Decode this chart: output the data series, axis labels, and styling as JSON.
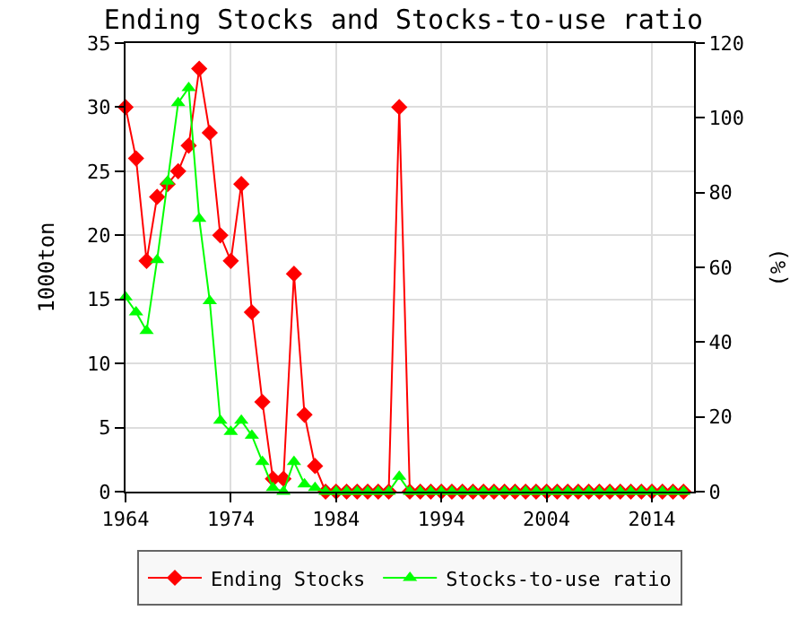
{
  "chart_data": {
    "type": "line",
    "title": "Ending Stocks and Stocks-to-use ratio",
    "ylabel": "1000ton",
    "y2label": "(%)",
    "x": [
      1964,
      1965,
      1966,
      1967,
      1968,
      1969,
      1970,
      1971,
      1972,
      1973,
      1974,
      1975,
      1976,
      1977,
      1978,
      1979,
      1980,
      1981,
      1982,
      1983,
      1984,
      1985,
      1986,
      1987,
      1988,
      1989,
      1990,
      1991,
      1992,
      1993,
      1994,
      1995,
      1996,
      1997,
      1998,
      1999,
      2000,
      2001,
      2002,
      2003,
      2004,
      2005,
      2006,
      2007,
      2008,
      2009,
      2010,
      2011,
      2012,
      2013,
      2014,
      2015,
      2016,
      2017
    ],
    "series": [
      {
        "name": "Ending Stocks",
        "color": "#ff0000",
        "marker": "diamond",
        "values": [
          30,
          26,
          18,
          23,
          24,
          25,
          27,
          33,
          28,
          20,
          18,
          24,
          14,
          7,
          1,
          1,
          17,
          6,
          2,
          0,
          0,
          0,
          0,
          0,
          0,
          0,
          30,
          0,
          0,
          0,
          0,
          0,
          0,
          0,
          0,
          0,
          0,
          0,
          0,
          0,
          0,
          0,
          0,
          0,
          0,
          0,
          0,
          0,
          0,
          0,
          0,
          0,
          0,
          0
        ]
      },
      {
        "name": "Stocks-to-use ratio",
        "color": "#00ff00",
        "marker": "triangle",
        "axis": "y2",
        "values": [
          52,
          48,
          43,
          62,
          83,
          104,
          108,
          73,
          51,
          19,
          16,
          19,
          15,
          8,
          1,
          0,
          8,
          2,
          1,
          0,
          0,
          0,
          0,
          0,
          0,
          0,
          4,
          0,
          0,
          0,
          0,
          0,
          0,
          0,
          0,
          0,
          0,
          0,
          0,
          0,
          0,
          0,
          0,
          0,
          0,
          0,
          0,
          0,
          0,
          0,
          0,
          0,
          0,
          0
        ]
      }
    ],
    "xlim": [
      1964,
      2018
    ],
    "xticks": [
      1964,
      1974,
      1984,
      1994,
      2004,
      2014
    ],
    "ylim": [
      0,
      35
    ],
    "yticks": [
      0,
      5,
      10,
      15,
      20,
      25,
      30,
      35
    ],
    "y2lim": [
      0,
      120
    ],
    "y2ticks": [
      0,
      20,
      40,
      60,
      80,
      100,
      120
    ],
    "grid": true,
    "legend": "bottom"
  }
}
